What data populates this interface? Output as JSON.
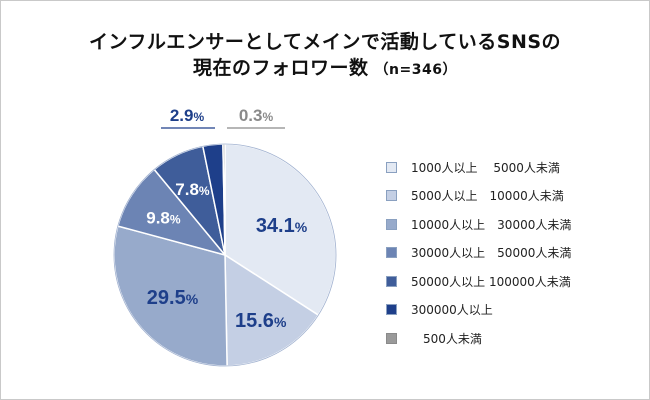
{
  "title": {
    "line1": "インフルエンサーとしてメインで活動しているSNSの",
    "line2": "現在のフォロワー数",
    "sample": "（n=346）"
  },
  "chart_data": {
    "type": "pie",
    "unit": "%",
    "slices": [
      {
        "label": "1000人以上　 5000人未満",
        "value": 34.1,
        "color": "#e3e9f3"
      },
      {
        "label": "5000人以上　10000人未満",
        "value": 15.6,
        "color": "#c4cfe4"
      },
      {
        "label": "10000人以上　30000人未満",
        "value": 29.5,
        "color": "#97aacb"
      },
      {
        "label": "30000人以上　50000人未満",
        "value": 9.8,
        "color": "#6c84b4"
      },
      {
        "label": "50000人以上 100000人未満",
        "value": 7.8,
        "color": "#3f5d9a"
      },
      {
        "label": "300000人以上",
        "value": 2.9,
        "color": "#1e3f8a"
      },
      {
        "label": "　500人未満",
        "value": 0.3,
        "color": "#9a9a9a"
      }
    ],
    "value_labels": [
      "34.1%",
      "15.6%",
      "29.5%",
      "9.8%",
      "7.8%",
      "2.9%",
      "0.3%"
    ],
    "legend_position": "right"
  }
}
